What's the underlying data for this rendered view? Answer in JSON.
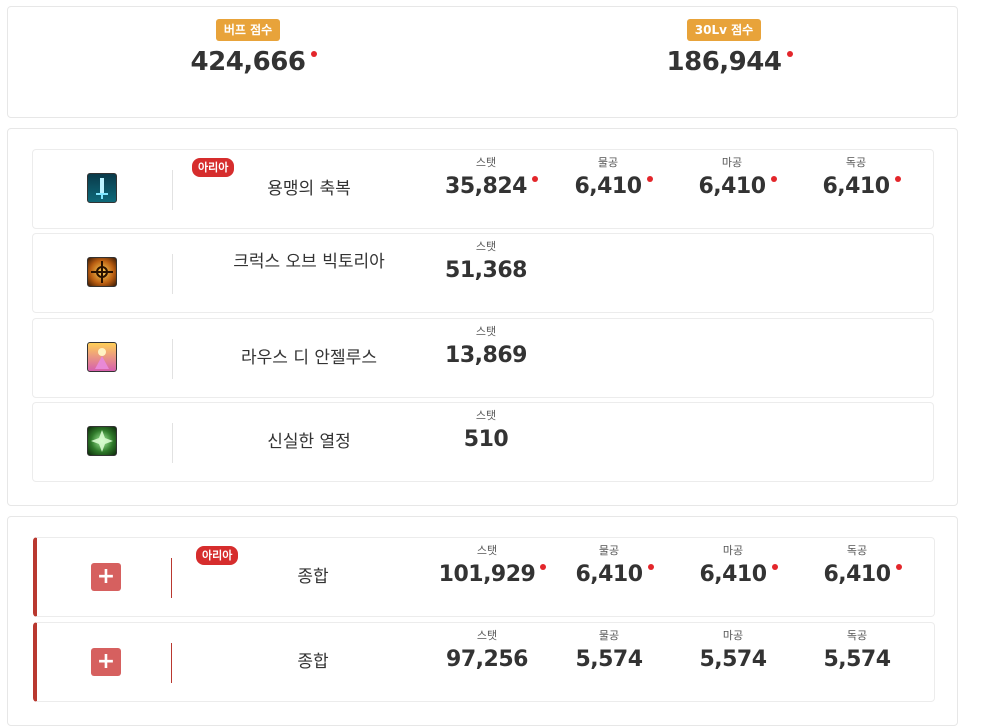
{
  "scores": {
    "buff": {
      "label": "버프 점수",
      "value": "424,666"
    },
    "lv30": {
      "label": "30Lv 점수",
      "value": "186,944"
    }
  },
  "buffs": [
    {
      "icon": "sword-blessing-icon",
      "name": "용맹의 축복",
      "badge": "아리아",
      "stats": [
        {
          "label": "스탯",
          "value": "35,824"
        },
        {
          "label": "물공",
          "value": "6,410"
        },
        {
          "label": "마공",
          "value": "6,410"
        },
        {
          "label": "독공",
          "value": "6,410"
        }
      ]
    },
    {
      "icon": "crux-of-victoria-icon",
      "name": "크럭스 오브 빅토리아",
      "stats": [
        {
          "label": "스탯",
          "value": "51,368"
        }
      ]
    },
    {
      "icon": "laus-di-angelus-icon",
      "name": "라우스 디 안젤루스",
      "stats": [
        {
          "label": "스탯",
          "value": "13,869"
        }
      ]
    },
    {
      "icon": "sincere-passion-icon",
      "name": "신실한 열정",
      "stats": [
        {
          "label": "스탯",
          "value": "510"
        }
      ]
    }
  ],
  "totals": [
    {
      "name": "종합",
      "badge": "아리아",
      "stats": [
        {
          "label": "스탯",
          "value": "101,929"
        },
        {
          "label": "물공",
          "value": "6,410"
        },
        {
          "label": "마공",
          "value": "6,410"
        },
        {
          "label": "독공",
          "value": "6,410"
        }
      ]
    },
    {
      "name": "종합",
      "stats": [
        {
          "label": "스탯",
          "value": "97,256"
        },
        {
          "label": "물공",
          "value": "5,574"
        },
        {
          "label": "마공",
          "value": "5,574"
        },
        {
          "label": "독공",
          "value": "5,574"
        }
      ]
    }
  ],
  "colors": {
    "accent": "#b9382f",
    "badge_orange": "#e8a33a",
    "badge_red": "#d62d2d",
    "dot": "#e3262b"
  }
}
